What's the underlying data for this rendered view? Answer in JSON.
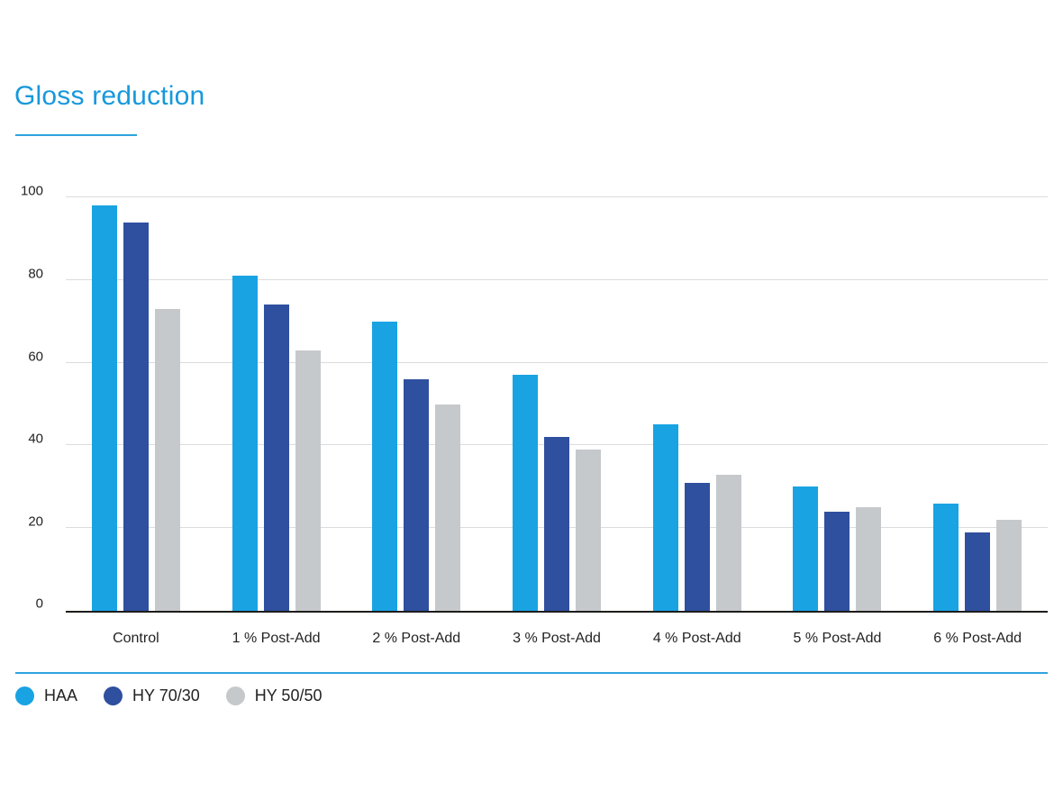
{
  "page": {
    "title": "Gloss reduction"
  },
  "colors": {
    "title_text": "#1798dc",
    "accent_line": "#2ea3df",
    "axis_line": "#1d1d1b",
    "gridline": "#dbdcdd",
    "tick_text": "#232323"
  },
  "chart_data": {
    "type": "bar",
    "title": "Gloss reduction",
    "xlabel": "",
    "ylabel": "",
    "ylim": [
      0,
      100
    ],
    "yticks": [
      0,
      20,
      40,
      60,
      80,
      100
    ],
    "grid": true,
    "legend_position": "bottom",
    "categories": [
      "Control",
      "1 % Post-Add",
      "2 % Post-Add",
      "3 % Post-Add",
      "4 % Post-Add",
      "5 % Post-Add",
      "6 % Post-Add"
    ],
    "series": [
      {
        "name": "HAA",
        "color": "#19a3e3",
        "values": [
          98,
          81,
          70,
          57,
          45,
          30,
          26
        ]
      },
      {
        "name": "HY 70/30",
        "color": "#2f4f9f",
        "values": [
          94,
          74,
          56,
          42,
          31,
          24,
          19
        ]
      },
      {
        "name": "HY 50/50",
        "color": "#c5c9cc",
        "values": [
          73,
          63,
          50,
          39,
          33,
          25,
          22
        ]
      }
    ]
  }
}
